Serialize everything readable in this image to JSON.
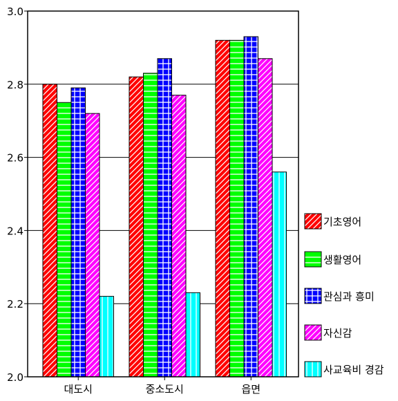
{
  "chart_data": {
    "type": "bar",
    "categories": [
      "대도시",
      "중소도시",
      "읍면"
    ],
    "series": [
      {
        "name": "기초영어",
        "values": [
          2.8,
          2.82,
          2.92
        ],
        "color": "#ff0000",
        "pattern": "diag-dense"
      },
      {
        "name": "생활영어",
        "values": [
          2.75,
          2.83,
          2.92
        ],
        "color": "#00ff00",
        "pattern": "horizontal"
      },
      {
        "name": "관심과 흥미",
        "values": [
          2.79,
          2.87,
          2.93
        ],
        "color": "#0000ff",
        "pattern": "grid"
      },
      {
        "name": "자신감",
        "values": [
          2.72,
          2.77,
          2.87
        ],
        "color": "#ff00ff",
        "pattern": "diag-sparse"
      },
      {
        "name": "사교육비 경감",
        "values": [
          2.22,
          2.23,
          2.56
        ],
        "color": "#00ffff",
        "pattern": "vertical"
      }
    ],
    "ylim": [
      2.0,
      3.0
    ],
    "yticks": [
      "2.0",
      "2.2",
      "2.4",
      "2.6",
      "2.8",
      "3.0"
    ],
    "grid": true,
    "legend_position": "right"
  }
}
